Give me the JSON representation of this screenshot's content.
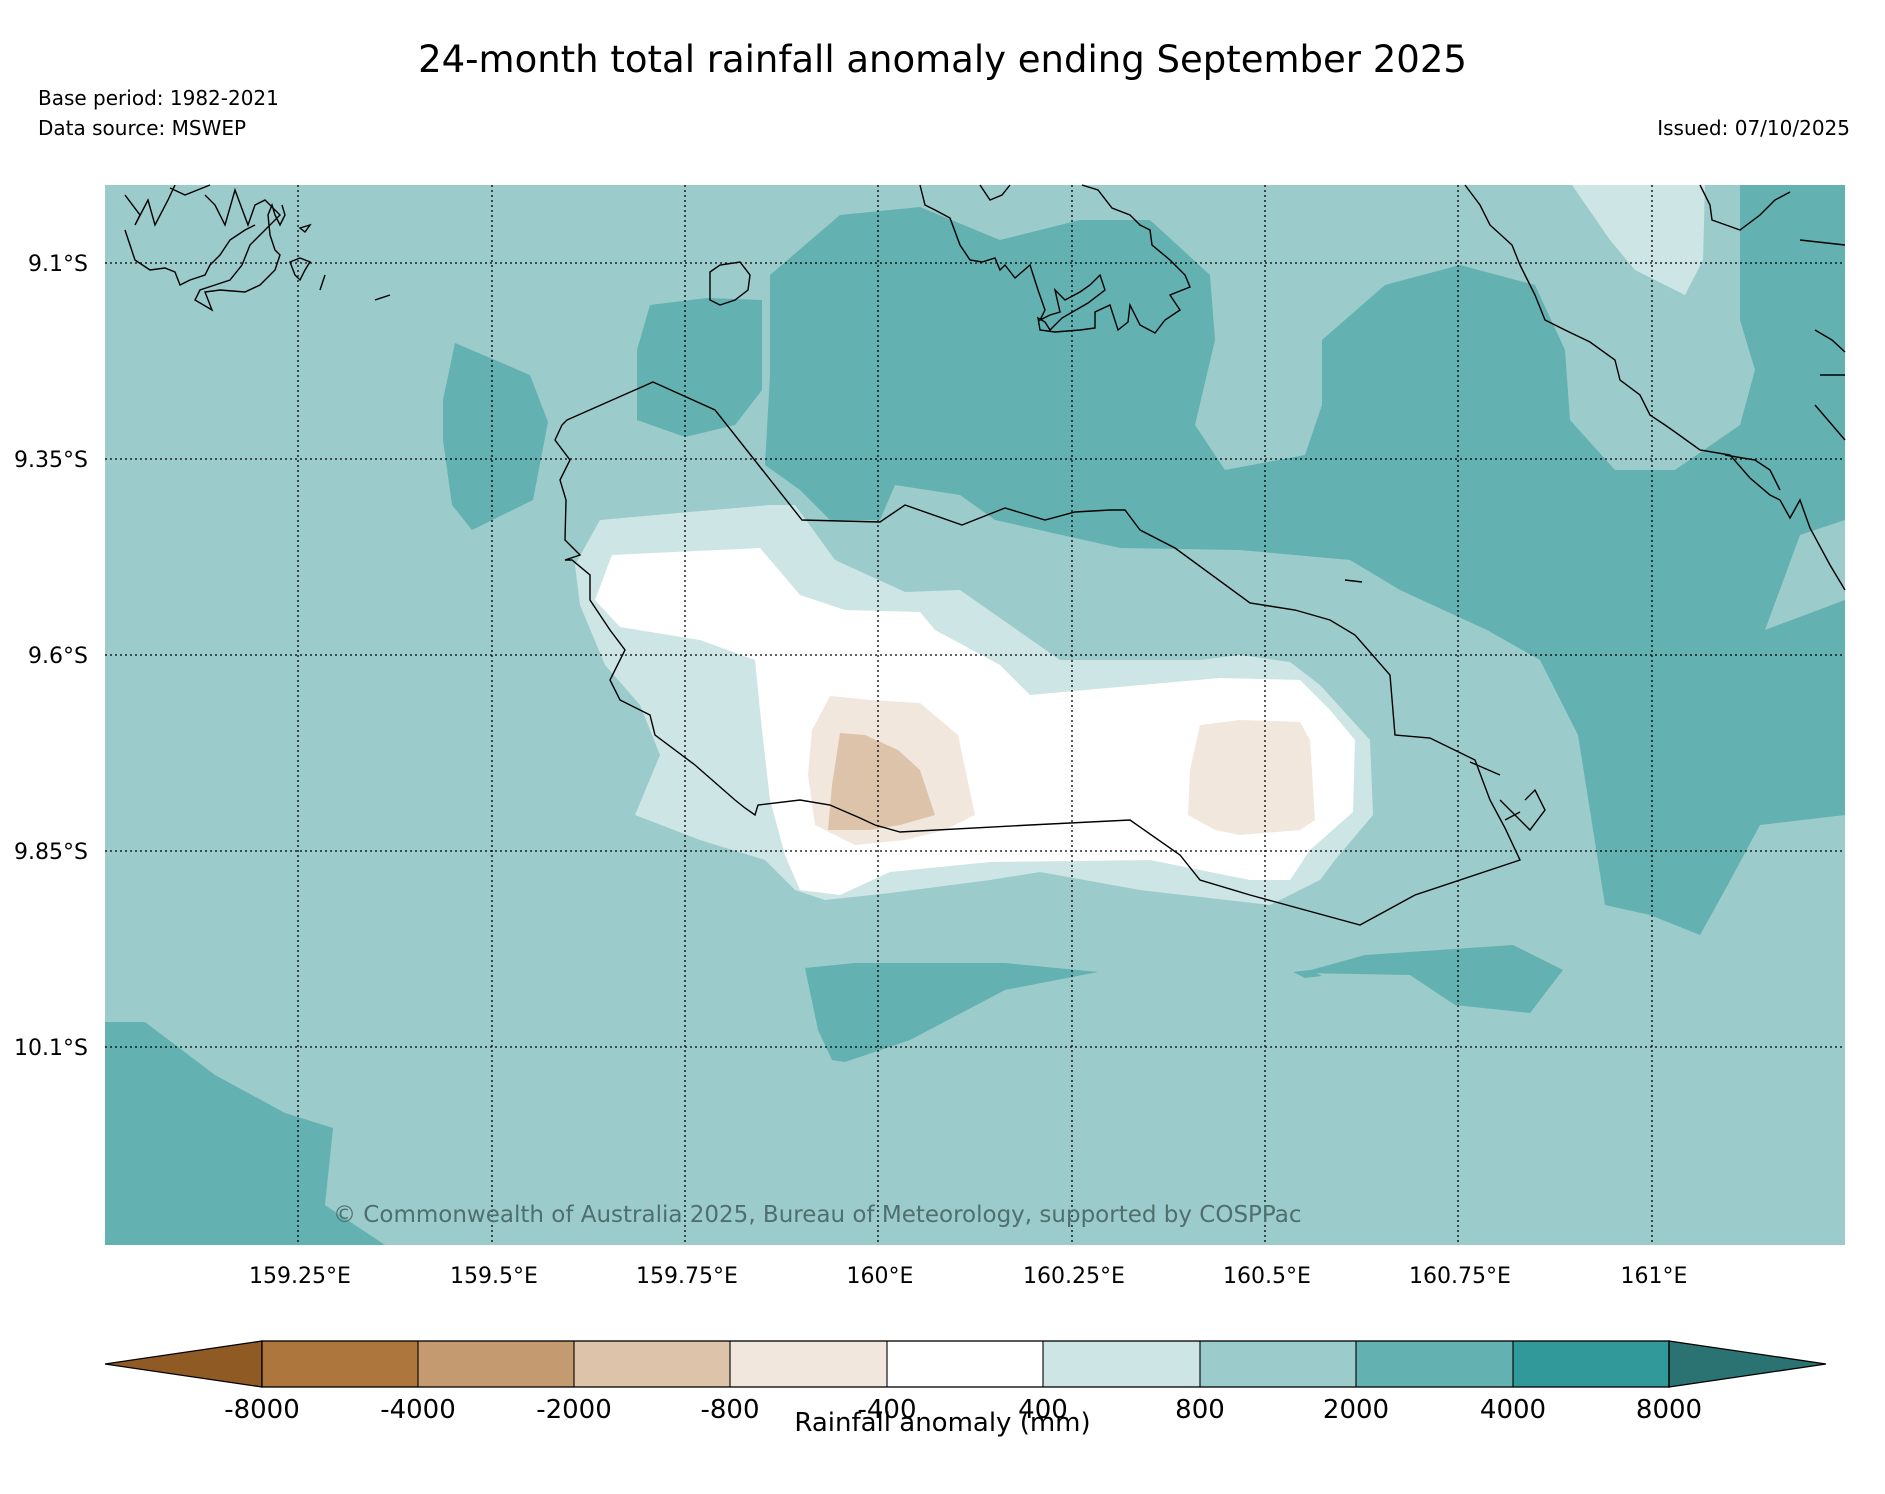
{
  "title": "24-month total rainfall anomaly ending September 2025",
  "base_period": "Base period: 1982-2021",
  "data_source": "Data source: MSWEP",
  "issued": "Issued: 07/10/2025",
  "copyright": "© Commonwealth of Australia 2025, Bureau of Meteorology, supported by COSPPac",
  "lat_labels": [
    "9.1°S",
    "9.35°S",
    "9.6°S",
    "9.85°S",
    "10.1°S"
  ],
  "lon_labels": [
    "159.25°E",
    "159.5°E",
    "159.75°E",
    "160°E",
    "160.25°E",
    "160.5°E",
    "160.75°E",
    "161°E"
  ],
  "colorbar": {
    "title": "Rainfall anomaly (mm)",
    "tick_labels": [
      "-8000",
      "-4000",
      "-2000",
      "-800",
      "-400",
      "400",
      "800",
      "2000",
      "4000",
      "8000"
    ],
    "colors": [
      "#8f5a24",
      "#ad763c",
      "#c49a70",
      "#dcc3aa",
      "#f1e7dd",
      "#ffffff",
      "#cde6e5",
      "#9ccbcb",
      "#63b1b1",
      "#31999a",
      "#2b7373"
    ]
  },
  "map_colors": {
    "background": "#9ccbcb",
    "high": "#63b1b1",
    "low_light": "#cde6e5",
    "neutral": "#ffffff",
    "dry_light": "#f1e7dd",
    "dry_mid": "#dcc3aa"
  }
}
